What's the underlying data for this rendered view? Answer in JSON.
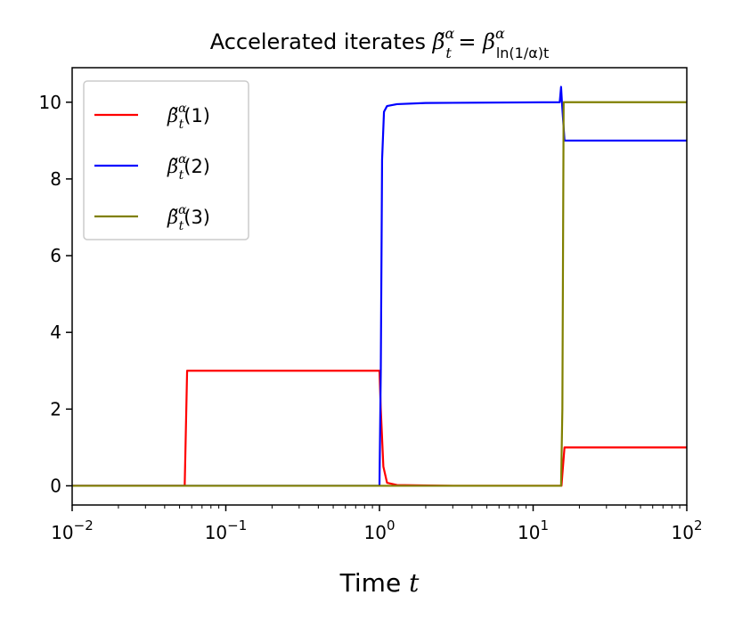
{
  "chart_data": {
    "type": "line",
    "title": "Accelerated iterates β̃ᵗᵅ = βᵅ_ln(1/α)t",
    "title_parts": {
      "prefix": "Accelerated iterates ",
      "lhs": "β̃",
      "lhs_sup": "α",
      "lhs_sub": "t",
      "eq": " = ",
      "rhs": "β",
      "rhs_sup": "α",
      "rhs_sub": "ln(1/α)t"
    },
    "xlabel": "Time t",
    "xlabel_parts": {
      "text": "Time ",
      "var": "t"
    },
    "ylabel": "",
    "xscale": "log",
    "xlim": [
      0.01,
      100
    ],
    "ylim": [
      -0.5,
      10.9
    ],
    "x_ticks": [
      {
        "value": 0.01,
        "base": "10",
        "exp": "−2"
      },
      {
        "value": 0.1,
        "base": "10",
        "exp": "−1"
      },
      {
        "value": 1,
        "base": "10",
        "exp": "0"
      },
      {
        "value": 10,
        "base": "10",
        "exp": "1"
      },
      {
        "value": 100,
        "base": "10",
        "exp": "2"
      }
    ],
    "y_ticks": [
      {
        "value": 0,
        "label": "0"
      },
      {
        "value": 2,
        "label": "2"
      },
      {
        "value": 4,
        "label": "4"
      },
      {
        "value": 6,
        "label": "6"
      },
      {
        "value": 8,
        "label": "8"
      },
      {
        "value": 10,
        "label": "10"
      }
    ],
    "legend_position": "top-left",
    "grid": false,
    "series": [
      {
        "name": "β̃ᵗᵅ(1)",
        "label_parts": {
          "sym": "β̃",
          "sup": "α",
          "sub": "t",
          "arg": "(1)"
        },
        "color": "#ff0000",
        "points": [
          [
            0.01,
            0
          ],
          [
            0.054,
            0
          ],
          [
            0.056,
            3
          ],
          [
            0.95,
            3
          ],
          [
            1.0,
            3
          ],
          [
            1.02,
            2.0
          ],
          [
            1.06,
            0.5
          ],
          [
            1.12,
            0.08
          ],
          [
            1.3,
            0.02
          ],
          [
            3,
            0
          ],
          [
            15.3,
            0
          ],
          [
            15.5,
            0.3
          ],
          [
            16.0,
            1.0
          ],
          [
            100,
            1.0
          ]
        ]
      },
      {
        "name": "β̃ᵗᵅ(2)",
        "label_parts": {
          "sym": "β̃",
          "sup": "α",
          "sub": "t",
          "arg": "(2)"
        },
        "color": "#0000ff",
        "points": [
          [
            0.01,
            0
          ],
          [
            1.0,
            0
          ],
          [
            1.02,
            3
          ],
          [
            1.04,
            8.5
          ],
          [
            1.07,
            9.75
          ],
          [
            1.12,
            9.9
          ],
          [
            1.3,
            9.95
          ],
          [
            2,
            9.98
          ],
          [
            14.9,
            10.0
          ],
          [
            15.2,
            10.4
          ],
          [
            15.4,
            10.0
          ],
          [
            15.7,
            9.5
          ],
          [
            16.0,
            9.0
          ],
          [
            100,
            9.0
          ]
        ]
      },
      {
        "name": "β̃ᵗᵅ(3)",
        "label_parts": {
          "sym": "β̃",
          "sup": "α",
          "sub": "t",
          "arg": "(3)"
        },
        "color": "#808000",
        "points": [
          [
            0.01,
            0
          ],
          [
            15.2,
            0
          ],
          [
            15.5,
            2.0
          ],
          [
            15.8,
            10.0
          ],
          [
            100,
            10.0
          ]
        ]
      }
    ]
  }
}
